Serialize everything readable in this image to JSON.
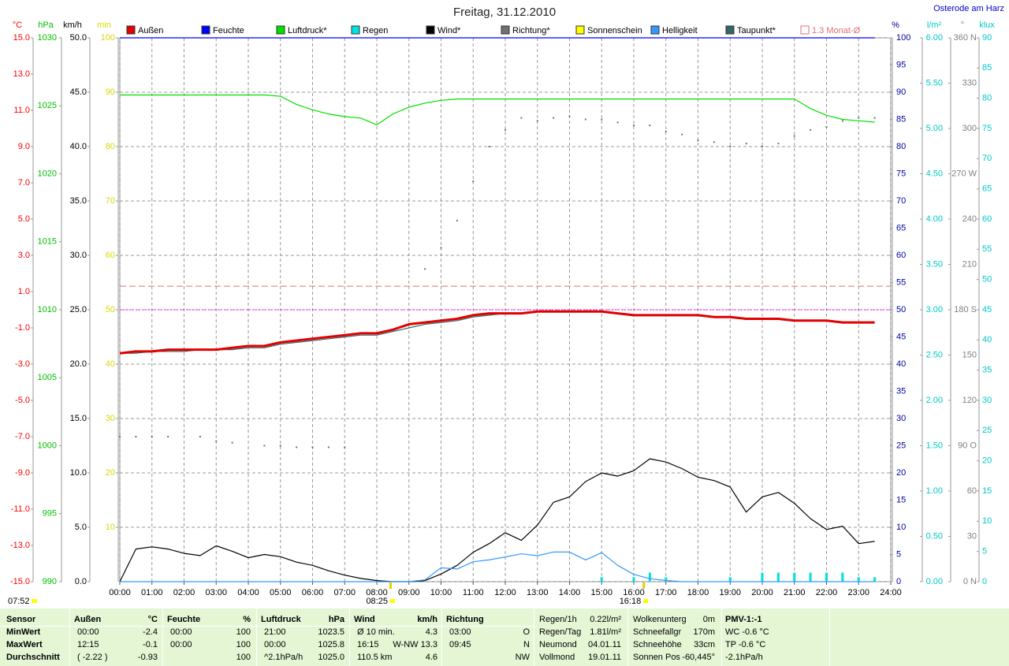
{
  "chart_data": {
    "type": "line",
    "title": "Freitag, 31.12.2010",
    "location": "Osterode am Harz",
    "update_time": "07:52",
    "xlim": [
      0,
      24
    ],
    "xticks": [
      {
        "value": 0,
        "label": "00:00"
      },
      {
        "value": 1,
        "label": "01:00"
      },
      {
        "value": 2,
        "label": "02:00"
      },
      {
        "value": 3,
        "label": "03:00"
      },
      {
        "value": 4,
        "label": "04:00"
      },
      {
        "value": 5,
        "label": "05:00"
      },
      {
        "value": 6,
        "label": "06:00"
      },
      {
        "value": 7,
        "label": "07:00"
      },
      {
        "value": 8,
        "label": "08:00"
      },
      {
        "value": 9,
        "label": "09:00"
      },
      {
        "value": 10,
        "label": "10:00"
      },
      {
        "value": 11,
        "label": "11:00"
      },
      {
        "value": 12,
        "label": "12:00"
      },
      {
        "value": 13,
        "label": "13:00"
      },
      {
        "value": 14,
        "label": "14:00"
      },
      {
        "value": 15,
        "label": "15:00"
      },
      {
        "value": 16,
        "label": "16:00"
      },
      {
        "value": 17,
        "label": "17:00"
      },
      {
        "value": 18,
        "label": "18:00"
      },
      {
        "value": 19,
        "label": "19:00"
      },
      {
        "value": 20,
        "label": "20:00"
      },
      {
        "value": 21,
        "label": "21:00"
      },
      {
        "value": 22,
        "label": "22:00"
      },
      {
        "value": 23,
        "label": "23:00"
      },
      {
        "value": 24,
        "label": "24:00"
      }
    ],
    "grid": {
      "axis": "kmh",
      "vertical": true
    },
    "axes": {
      "temp": {
        "title": "°C",
        "color": "#ff0000",
        "lim": [
          -15,
          15
        ],
        "ticks": [
          {
            "value": 15,
            "label": "15.0"
          },
          {
            "value": 13,
            "label": "13.0"
          },
          {
            "value": 11,
            "label": "11.0"
          },
          {
            "value": 9,
            "label": "9.0"
          },
          {
            "value": 7,
            "label": "7.0"
          },
          {
            "value": 5,
            "label": "5.0"
          },
          {
            "value": 3,
            "label": "3.0"
          },
          {
            "value": 1,
            "label": "1.0"
          },
          {
            "value": -1,
            "label": "-1.0"
          },
          {
            "value": -3,
            "label": "-3.0"
          },
          {
            "value": -5,
            "label": "-5.0"
          },
          {
            "value": -7,
            "label": "-7.0"
          },
          {
            "value": -9,
            "label": "-9.0"
          },
          {
            "value": -11,
            "label": "-11.0"
          },
          {
            "value": -13,
            "label": "-13.0"
          },
          {
            "value": -15,
            "label": "-15.0"
          }
        ]
      },
      "hpa": {
        "title": "hPa",
        "color": "#00c000",
        "lim": [
          990,
          1030
        ],
        "ticks": [
          990,
          995,
          1000,
          1005,
          1010,
          1015,
          1020,
          1025,
          1030
        ]
      },
      "kmh": {
        "title": "km/h",
        "color": "#000000",
        "lim": [
          0,
          50
        ],
        "ticks": [
          {
            "value": 0,
            "label": "0.0"
          },
          {
            "value": 5,
            "label": "5.0"
          },
          {
            "value": 10,
            "label": "10.0"
          },
          {
            "value": 15,
            "label": "15.0"
          },
          {
            "value": 20,
            "label": "20.0"
          },
          {
            "value": 25,
            "label": "25.0"
          },
          {
            "value": 30,
            "label": "30.0"
          },
          {
            "value": 35,
            "label": "35.0"
          },
          {
            "value": 40,
            "label": "40.0"
          },
          {
            "value": 45,
            "label": "45.0"
          },
          {
            "value": 50,
            "label": "50.0"
          }
        ]
      },
      "min": {
        "title": "min",
        "color": "#d8d800",
        "lim": [
          0,
          100
        ],
        "ticks": [
          10,
          20,
          30,
          40,
          50,
          60,
          70,
          80,
          90,
          100
        ]
      },
      "pct": {
        "title": "%",
        "color": "#0000a0",
        "lim": [
          0,
          100
        ],
        "ticks": [
          0,
          5,
          10,
          15,
          20,
          25,
          30,
          35,
          40,
          45,
          50,
          55,
          60,
          65,
          70,
          75,
          80,
          85,
          90,
          95,
          100
        ]
      },
      "rain": {
        "title": "l/m²",
        "color": "#00c8c8",
        "lim": [
          0,
          6
        ],
        "ticks": [
          {
            "value": 0,
            "label": "0.00"
          },
          {
            "value": 0.5,
            "label": "0.50"
          },
          {
            "value": 1,
            "label": "1.00"
          },
          {
            "value": 1.5,
            "label": "1.50"
          },
          {
            "value": 2,
            "label": "2.00"
          },
          {
            "value": 2.5,
            "label": "2.50"
          },
          {
            "value": 3,
            "label": "3.00"
          },
          {
            "value": 3.5,
            "label": "3.50"
          },
          {
            "value": 4,
            "label": "4.00"
          },
          {
            "value": 4.5,
            "label": "4.50"
          },
          {
            "value": 5,
            "label": "5.00"
          },
          {
            "value": 5.5,
            "label": "5.50"
          },
          {
            "value": 6,
            "label": "6.00"
          }
        ]
      },
      "deg": {
        "title": "°",
        "color": "#808080",
        "lim": [
          0,
          360
        ],
        "ticks": [
          {
            "value": 0,
            "label": "0 N"
          },
          30,
          60,
          {
            "value": 90,
            "label": "90 O"
          },
          120,
          150,
          {
            "value": 180,
            "label": "180 S"
          },
          210,
          240,
          {
            "value": 270,
            "label": "270 W"
          },
          300,
          330,
          {
            "value": 360,
            "label": "360 N"
          }
        ]
      },
      "klux": {
        "title": "klux",
        "color": "#00c8c8",
        "lim": [
          0,
          90
        ],
        "ticks": [
          0,
          5,
          10,
          15,
          20,
          25,
          30,
          35,
          40,
          45,
          50,
          55,
          60,
          65,
          70,
          75,
          80,
          85,
          90
        ]
      }
    },
    "x": [
      0,
      0.5,
      1,
      1.5,
      2,
      2.5,
      3,
      3.5,
      4,
      4.5,
      5,
      5.5,
      6,
      6.5,
      7,
      7.5,
      8,
      8.5,
      9,
      9.5,
      10,
      10.5,
      11,
      11.5,
      12,
      12.5,
      13,
      13.5,
      14,
      14.5,
      15,
      15.5,
      16,
      16.5,
      17,
      17.5,
      18,
      18.5,
      19,
      19.5,
      20,
      20.5,
      21,
      21.5,
      22,
      22.5,
      23,
      23.5
    ],
    "series": [
      {
        "name": "Außen",
        "color": "#e00000",
        "axis": "temp",
        "style": "thick-line",
        "values": [
          -2.4,
          -2.3,
          -2.3,
          -2.2,
          -2.2,
          -2.2,
          -2.2,
          -2.1,
          -2.0,
          -2.0,
          -1.8,
          -1.7,
          -1.6,
          -1.5,
          -1.4,
          -1.3,
          -1.3,
          -1.1,
          -0.8,
          -0.7,
          -0.6,
          -0.5,
          -0.3,
          -0.2,
          -0.2,
          -0.2,
          -0.1,
          -0.1,
          -0.1,
          -0.1,
          -0.1,
          -0.2,
          -0.3,
          -0.3,
          -0.3,
          -0.3,
          -0.3,
          -0.4,
          -0.4,
          -0.5,
          -0.5,
          -0.5,
          -0.6,
          -0.6,
          -0.6,
          -0.7,
          -0.7,
          -0.7
        ]
      },
      {
        "name": "Feuchte",
        "color": "#0000ff",
        "axis": "pct",
        "style": "line",
        "values": [
          100,
          100,
          100,
          100,
          100,
          100,
          100,
          100,
          100,
          100,
          100,
          100,
          100,
          100,
          100,
          100,
          100,
          100,
          100,
          100,
          100,
          100,
          100,
          100,
          100,
          100,
          100,
          100,
          100,
          100,
          100,
          100,
          100,
          100,
          100,
          100,
          100,
          100,
          100,
          100,
          100,
          100,
          100,
          100,
          100,
          100,
          100,
          100
        ]
      },
      {
        "name": "Luftdruck*",
        "color": "#00e000",
        "axis": "hpa",
        "style": "line",
        "values": [
          1025.8,
          1025.8,
          1025.8,
          1025.8,
          1025.8,
          1025.8,
          1025.8,
          1025.8,
          1025.8,
          1025.8,
          1025.7,
          1025.1,
          1024.7,
          1024.4,
          1024.2,
          1024.1,
          1023.6,
          1024.4,
          1024.9,
          1025.2,
          1025.4,
          1025.5,
          1025.5,
          1025.5,
          1025.5,
          1025.5,
          1025.5,
          1025.5,
          1025.5,
          1025.5,
          1025.5,
          1025.5,
          1025.5,
          1025.5,
          1025.5,
          1025.5,
          1025.5,
          1025.5,
          1025.5,
          1025.5,
          1025.5,
          1025.5,
          1025.5,
          1024.8,
          1024.3,
          1024.0,
          1023.9,
          1023.8
        ]
      },
      {
        "name": "Regen",
        "color": "#00e0e0",
        "axis": "rain",
        "style": "bars",
        "values": [
          0,
          0,
          0,
          0,
          0,
          0,
          0,
          0,
          0,
          0,
          0,
          0,
          0,
          0,
          0,
          0,
          0,
          0,
          0,
          0,
          0,
          0,
          0,
          0,
          0,
          0,
          0,
          0,
          0,
          0,
          0.05,
          0,
          0.05,
          0.1,
          0.05,
          0,
          0,
          0,
          0.05,
          0,
          0.1,
          0.1,
          0.1,
          0.1,
          0.1,
          0.1,
          0.05,
          0.05
        ]
      },
      {
        "name": "Wind*",
        "color": "#000000",
        "axis": "kmh",
        "style": "line",
        "values": [
          0,
          3.0,
          3.2,
          3.0,
          2.6,
          2.4,
          3.3,
          2.8,
          2.2,
          2.5,
          2.3,
          1.8,
          1.5,
          1.0,
          0.6,
          0.3,
          0.1,
          0.0,
          0.0,
          0.1,
          0.7,
          1.5,
          2.7,
          3.5,
          4.5,
          3.8,
          5.2,
          7.3,
          7.8,
          9.2,
          10.0,
          9.7,
          10.2,
          11.3,
          11.0,
          10.4,
          9.6,
          9.3,
          8.7,
          6.4,
          7.8,
          8.2,
          7.2,
          5.8,
          4.8,
          5.1,
          3.5,
          3.7
        ]
      },
      {
        "name": "Richtung*",
        "color": "#707070",
        "axis": "deg",
        "style": "dots",
        "values": [
          96,
          96,
          96,
          96,
          null,
          96,
          93,
          92,
          null,
          90,
          90,
          89,
          89,
          89,
          89,
          null,
          null,
          null,
          null,
          207,
          221,
          239,
          265,
          288,
          299,
          307,
          305,
          307,
          308,
          306,
          306,
          304,
          302,
          302,
          298,
          296,
          292,
          291,
          288,
          290,
          288,
          290,
          295,
          299,
          301,
          305,
          307,
          307
        ]
      },
      {
        "name": "Sonnenschein",
        "color": "#ffff00",
        "axis": "min",
        "style": "bars",
        "values": [
          0,
          0,
          0,
          0,
          0,
          0,
          0,
          0,
          0,
          0,
          0,
          0,
          0,
          0,
          0,
          0,
          0,
          0,
          0,
          0,
          0,
          0,
          0,
          0,
          0,
          0,
          0,
          0,
          0,
          0,
          0,
          0,
          0,
          0,
          0,
          0,
          0,
          0,
          0,
          0,
          0,
          0,
          0,
          0,
          0,
          0,
          0,
          0
        ]
      },
      {
        "name": "Helligkeit",
        "color": "#3399ff",
        "axis": "klux",
        "style": "line",
        "values": [
          0,
          0,
          0,
          0,
          0,
          0,
          0,
          0,
          0,
          0,
          0,
          0,
          0,
          0,
          0,
          0,
          0,
          0,
          0,
          0.3,
          2.3,
          2.1,
          3.3,
          3.6,
          4.1,
          4.6,
          4.3,
          4.9,
          4.9,
          3.6,
          4.8,
          2.7,
          1.2,
          0.5,
          0.2,
          0,
          0,
          0,
          0,
          0,
          0,
          0,
          0,
          0,
          0,
          0,
          0,
          0
        ]
      },
      {
        "name": "Taupunkt*",
        "color": "#336666",
        "axis": "temp",
        "style": "line",
        "values": [
          -2.4,
          -2.4,
          -2.3,
          -2.3,
          -2.3,
          -2.2,
          -2.2,
          -2.2,
          -2.1,
          -2.1,
          -1.9,
          -1.8,
          -1.7,
          -1.6,
          -1.5,
          -1.4,
          -1.4,
          -1.2,
          -1.0,
          -0.8,
          -0.7,
          -0.6,
          -0.4,
          -0.3,
          -0.2,
          -0.2,
          -0.1,
          -0.1,
          -0.1,
          -0.1,
          -0.1,
          -0.2,
          -0.3,
          -0.3,
          -0.3,
          -0.3,
          -0.3,
          -0.4,
          -0.4,
          -0.5,
          -0.5,
          -0.5,
          -0.6,
          -0.6,
          -0.6,
          -0.7,
          -0.7,
          -0.7
        ]
      }
    ],
    "monthly_mean": {
      "name": "1.3 Monat-Ø",
      "value": 1.3,
      "axis": "temp",
      "color": "#e07070"
    },
    "reference_lines": [
      {
        "axis": "temp",
        "value": 0,
        "color": "#ff00ff"
      }
    ],
    "sun_markers": [
      {
        "x": 8.4167,
        "label": "08:25"
      },
      {
        "x": 16.3,
        "label": "16:18"
      }
    ]
  },
  "stats": {
    "row_labels": [
      "Sensor",
      "MinWert",
      "MaxWert",
      "Durchschnitt"
    ],
    "groups": [
      {
        "title": "Außen",
        "unit": "°C",
        "rows": [
          {
            "t": "00:00",
            "v": "-2.4"
          },
          {
            "t": "12:15",
            "v": "-0.1"
          },
          {
            "t": "( -2.22 )",
            "v": "-0.93"
          }
        ]
      },
      {
        "title": "Feuchte",
        "unit": "%",
        "rows": [
          {
            "t": "00:00",
            "v": "100"
          },
          {
            "t": "00:00",
            "v": "100"
          },
          {
            "v": "100"
          }
        ]
      },
      {
        "title": "Luftdruck",
        "unit": "hPa",
        "rows": [
          {
            "t": "21:00",
            "v": "1023.5"
          },
          {
            "t": "00:00",
            "v": "1025.8"
          },
          {
            "t": "^2.1hPa/h",
            "v": "1025.0"
          }
        ]
      },
      {
        "title": "Wind",
        "unit": "km/h",
        "rows": [
          {
            "t": "Ø 10 min.",
            "v": "4.3"
          },
          {
            "t": "16:15",
            "v": "W-NW 13.3"
          },
          {
            "t": "110.5 km",
            "v": "4.6"
          }
        ]
      },
      {
        "title": "Richtung",
        "rows": [
          {
            "t": "03:00",
            "v": "O"
          },
          {
            "t": "09:45",
            "v": "N"
          },
          {
            "v": "NW"
          }
        ]
      }
    ],
    "info": [
      [
        [
          "Regen/1h",
          "0.22l/m²"
        ],
        [
          "Regen/Tag",
          "1.81l/m²"
        ],
        [
          "Neumond",
          "04.01.11"
        ],
        [
          "Vollmond",
          "19.01.11"
        ]
      ],
      [
        [
          "Wolkenunterg",
          "0m"
        ],
        [
          "Schneefallgr",
          "170m"
        ],
        [
          "Schneehöhe",
          "33cm"
        ],
        [
          "Sonnen Pos",
          "-60,445°"
        ]
      ]
    ],
    "pmv": {
      "title": "PMV-1:-1",
      "rows": [
        "WC -0.6 °C",
        "TP -0.6 °C",
        "-2.1hPa/h"
      ]
    }
  }
}
